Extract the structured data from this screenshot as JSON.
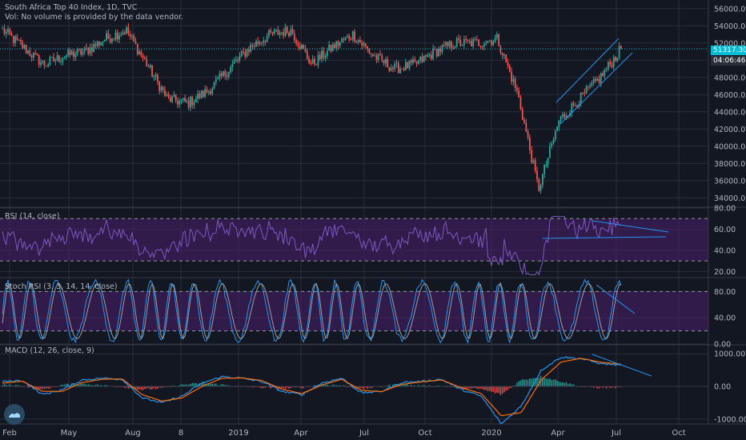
{
  "header": {
    "title": "South Africa Top 40 Index, 1D, TVC",
    "volume_note": "Vol: No volume is provided by the data vendor."
  },
  "price_badge": {
    "value": "51317.30",
    "color": "#00bcd4"
  },
  "countdown_badge": {
    "value": "04:06:46",
    "color": "#2a2e39"
  },
  "colors": {
    "background": "#131722",
    "up": "#26a69a",
    "down": "#ef5350",
    "rsi_line": "#7e57c2",
    "rsi_band": "#4a1f6b",
    "stoch_k": "#2196f3",
    "stoch_d": "#9e9e9e",
    "macd_line": "#2196f3",
    "signal_line": "#ff6d00",
    "hist_up": "#26a69a",
    "hist_down": "#ef5350",
    "trendline": "#2196f3",
    "grid": "#2a2e39"
  },
  "chart_data": [
    {
      "id": "price",
      "type": "candlestick",
      "title": "South Africa Top 40 Index, 1D, TVC",
      "ylim": [
        33000,
        57000
      ],
      "y_ticks": [
        "56000.00",
        "54000.00",
        "52000.00",
        "50000.00",
        "48000.00",
        "46000.00",
        "44000.00",
        "42000.00",
        "40000.00",
        "38000.00",
        "36000.00",
        "34000.00"
      ],
      "last_value": 51317.3,
      "path": [
        [
          "Feb",
          53500
        ],
        [
          "Mar",
          51500
        ],
        [
          "Apr",
          49500
        ],
        [
          "May",
          50500
        ],
        [
          "Jun",
          51000
        ],
        [
          "Jul",
          52500
        ],
        [
          "Aug",
          53500
        ],
        [
          "Sep",
          49500
        ],
        [
          "Oct",
          45500
        ],
        [
          "Nov",
          45000
        ],
        [
          "Dec",
          46500
        ],
        [
          "2019",
          49000
        ],
        [
          "Feb",
          51500
        ],
        [
          "Mar",
          53000
        ],
        [
          "Apr",
          53500
        ],
        [
          "May",
          49500
        ],
        [
          "Jun",
          51500
        ],
        [
          "Jul",
          53000
        ],
        [
          "Aug",
          50500
        ],
        [
          "Sep",
          49000
        ],
        [
          "Oct",
          49500
        ],
        [
          "Nov",
          51000
        ],
        [
          "Dec",
          52000
        ],
        [
          "2020",
          52000
        ],
        [
          "Feb",
          52500
        ],
        [
          "Mar",
          46000
        ],
        [
          "Mar",
          35000
        ],
        [
          "Apr",
          43000
        ],
        [
          "May",
          45500
        ],
        [
          "Jun",
          48000
        ],
        [
          "Jul",
          51300
        ]
      ],
      "annotations": [
        "ascending channel (Apr–Jul 2020)"
      ]
    },
    {
      "id": "rsi",
      "type": "line",
      "title": "RSI (14, close)",
      "ylim": [
        15,
        80
      ],
      "y_ticks": [
        "80.00",
        "60.00",
        "40.00",
        "20.00"
      ],
      "bands": [
        30,
        70
      ],
      "annotations": [
        "diverging trendlines over recent highs"
      ]
    },
    {
      "id": "stoch_rsi",
      "type": "line",
      "title": "Stoch RSI (3, 3, 14, 14, close)",
      "ylim": [
        0,
        100
      ],
      "y_ticks": [
        "80.00",
        "40.00",
        "0.00"
      ],
      "bands": [
        20,
        80
      ]
    },
    {
      "id": "macd",
      "type": "line",
      "title": "MACD (12, 26, close, 9)",
      "ylim": [
        -1150,
        1250
      ],
      "y_ticks": [
        "1000.00",
        "0.00",
        "-1000.00"
      ],
      "series": [
        {
          "name": "MACD",
          "values": [
            150,
            180,
            -250,
            -100,
            200,
            250,
            220,
            -350,
            -500,
            -300,
            100,
            300,
            250,
            150,
            -150,
            -250,
            100,
            250,
            -200,
            -150,
            120,
            150,
            220,
            -100,
            -300,
            -1150,
            -600,
            500,
            900,
            850,
            700,
            650
          ]
        },
        {
          "name": "Signal",
          "values": [
            100,
            160,
            -150,
            -150,
            120,
            220,
            230,
            -250,
            -450,
            -350,
            0,
            250,
            260,
            180,
            -80,
            -220,
            40,
            220,
            -120,
            -160,
            60,
            140,
            200,
            -40,
            -220,
            -900,
            -800,
            200,
            750,
            860,
            740,
            680
          ]
        }
      ]
    }
  ],
  "x_axis": {
    "ticks": [
      "Feb",
      "May",
      "Aug",
      "8",
      "2019",
      "Apr",
      "Jul",
      "Oct",
      "2020",
      "Apr",
      "Jul",
      "Oct"
    ]
  }
}
